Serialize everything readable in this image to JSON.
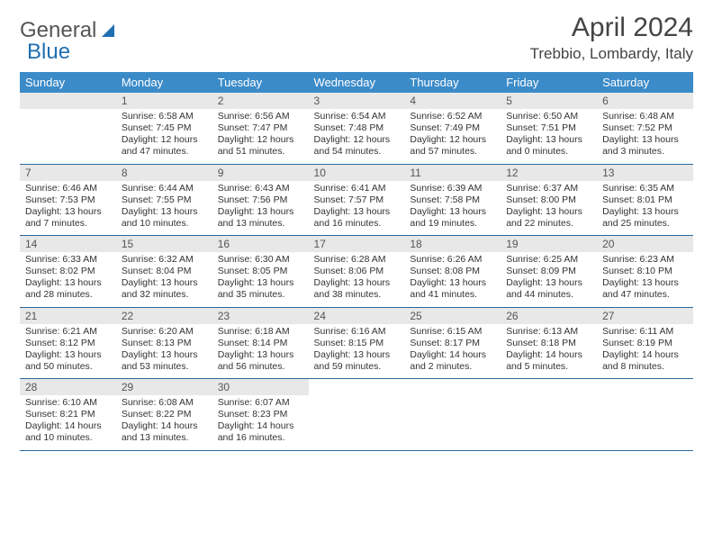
{
  "logo": {
    "text1": "General",
    "text2": "Blue"
  },
  "title": "April 2024",
  "location": "Trebbio, Lombardy, Italy",
  "colors": {
    "header_bg": "#3b8bc9",
    "header_text": "#ffffff",
    "daynum_bg": "#e8e8e8",
    "row_border": "#2a6aa0",
    "logo_accent": "#1f6fb2"
  },
  "weekdays": [
    "Sunday",
    "Monday",
    "Tuesday",
    "Wednesday",
    "Thursday",
    "Friday",
    "Saturday"
  ],
  "weeks": [
    [
      null,
      {
        "n": "1",
        "sr": "6:58 AM",
        "ss": "7:45 PM",
        "dl": "12 hours and 47 minutes."
      },
      {
        "n": "2",
        "sr": "6:56 AM",
        "ss": "7:47 PM",
        "dl": "12 hours and 51 minutes."
      },
      {
        "n": "3",
        "sr": "6:54 AM",
        "ss": "7:48 PM",
        "dl": "12 hours and 54 minutes."
      },
      {
        "n": "4",
        "sr": "6:52 AM",
        "ss": "7:49 PM",
        "dl": "12 hours and 57 minutes."
      },
      {
        "n": "5",
        "sr": "6:50 AM",
        "ss": "7:51 PM",
        "dl": "13 hours and 0 minutes."
      },
      {
        "n": "6",
        "sr": "6:48 AM",
        "ss": "7:52 PM",
        "dl": "13 hours and 3 minutes."
      }
    ],
    [
      {
        "n": "7",
        "sr": "6:46 AM",
        "ss": "7:53 PM",
        "dl": "13 hours and 7 minutes."
      },
      {
        "n": "8",
        "sr": "6:44 AM",
        "ss": "7:55 PM",
        "dl": "13 hours and 10 minutes."
      },
      {
        "n": "9",
        "sr": "6:43 AM",
        "ss": "7:56 PM",
        "dl": "13 hours and 13 minutes."
      },
      {
        "n": "10",
        "sr": "6:41 AM",
        "ss": "7:57 PM",
        "dl": "13 hours and 16 minutes."
      },
      {
        "n": "11",
        "sr": "6:39 AM",
        "ss": "7:58 PM",
        "dl": "13 hours and 19 minutes."
      },
      {
        "n": "12",
        "sr": "6:37 AM",
        "ss": "8:00 PM",
        "dl": "13 hours and 22 minutes."
      },
      {
        "n": "13",
        "sr": "6:35 AM",
        "ss": "8:01 PM",
        "dl": "13 hours and 25 minutes."
      }
    ],
    [
      {
        "n": "14",
        "sr": "6:33 AM",
        "ss": "8:02 PM",
        "dl": "13 hours and 28 minutes."
      },
      {
        "n": "15",
        "sr": "6:32 AM",
        "ss": "8:04 PM",
        "dl": "13 hours and 32 minutes."
      },
      {
        "n": "16",
        "sr": "6:30 AM",
        "ss": "8:05 PM",
        "dl": "13 hours and 35 minutes."
      },
      {
        "n": "17",
        "sr": "6:28 AM",
        "ss": "8:06 PM",
        "dl": "13 hours and 38 minutes."
      },
      {
        "n": "18",
        "sr": "6:26 AM",
        "ss": "8:08 PM",
        "dl": "13 hours and 41 minutes."
      },
      {
        "n": "19",
        "sr": "6:25 AM",
        "ss": "8:09 PM",
        "dl": "13 hours and 44 minutes."
      },
      {
        "n": "20",
        "sr": "6:23 AM",
        "ss": "8:10 PM",
        "dl": "13 hours and 47 minutes."
      }
    ],
    [
      {
        "n": "21",
        "sr": "6:21 AM",
        "ss": "8:12 PM",
        "dl": "13 hours and 50 minutes."
      },
      {
        "n": "22",
        "sr": "6:20 AM",
        "ss": "8:13 PM",
        "dl": "13 hours and 53 minutes."
      },
      {
        "n": "23",
        "sr": "6:18 AM",
        "ss": "8:14 PM",
        "dl": "13 hours and 56 minutes."
      },
      {
        "n": "24",
        "sr": "6:16 AM",
        "ss": "8:15 PM",
        "dl": "13 hours and 59 minutes."
      },
      {
        "n": "25",
        "sr": "6:15 AM",
        "ss": "8:17 PM",
        "dl": "14 hours and 2 minutes."
      },
      {
        "n": "26",
        "sr": "6:13 AM",
        "ss": "8:18 PM",
        "dl": "14 hours and 5 minutes."
      },
      {
        "n": "27",
        "sr": "6:11 AM",
        "ss": "8:19 PM",
        "dl": "14 hours and 8 minutes."
      }
    ],
    [
      {
        "n": "28",
        "sr": "6:10 AM",
        "ss": "8:21 PM",
        "dl": "14 hours and 10 minutes."
      },
      {
        "n": "29",
        "sr": "6:08 AM",
        "ss": "8:22 PM",
        "dl": "14 hours and 13 minutes."
      },
      {
        "n": "30",
        "sr": "6:07 AM",
        "ss": "8:23 PM",
        "dl": "14 hours and 16 minutes."
      },
      null,
      null,
      null,
      null
    ]
  ],
  "labels": {
    "sunrise": "Sunrise:",
    "sunset": "Sunset:",
    "daylight": "Daylight:"
  }
}
